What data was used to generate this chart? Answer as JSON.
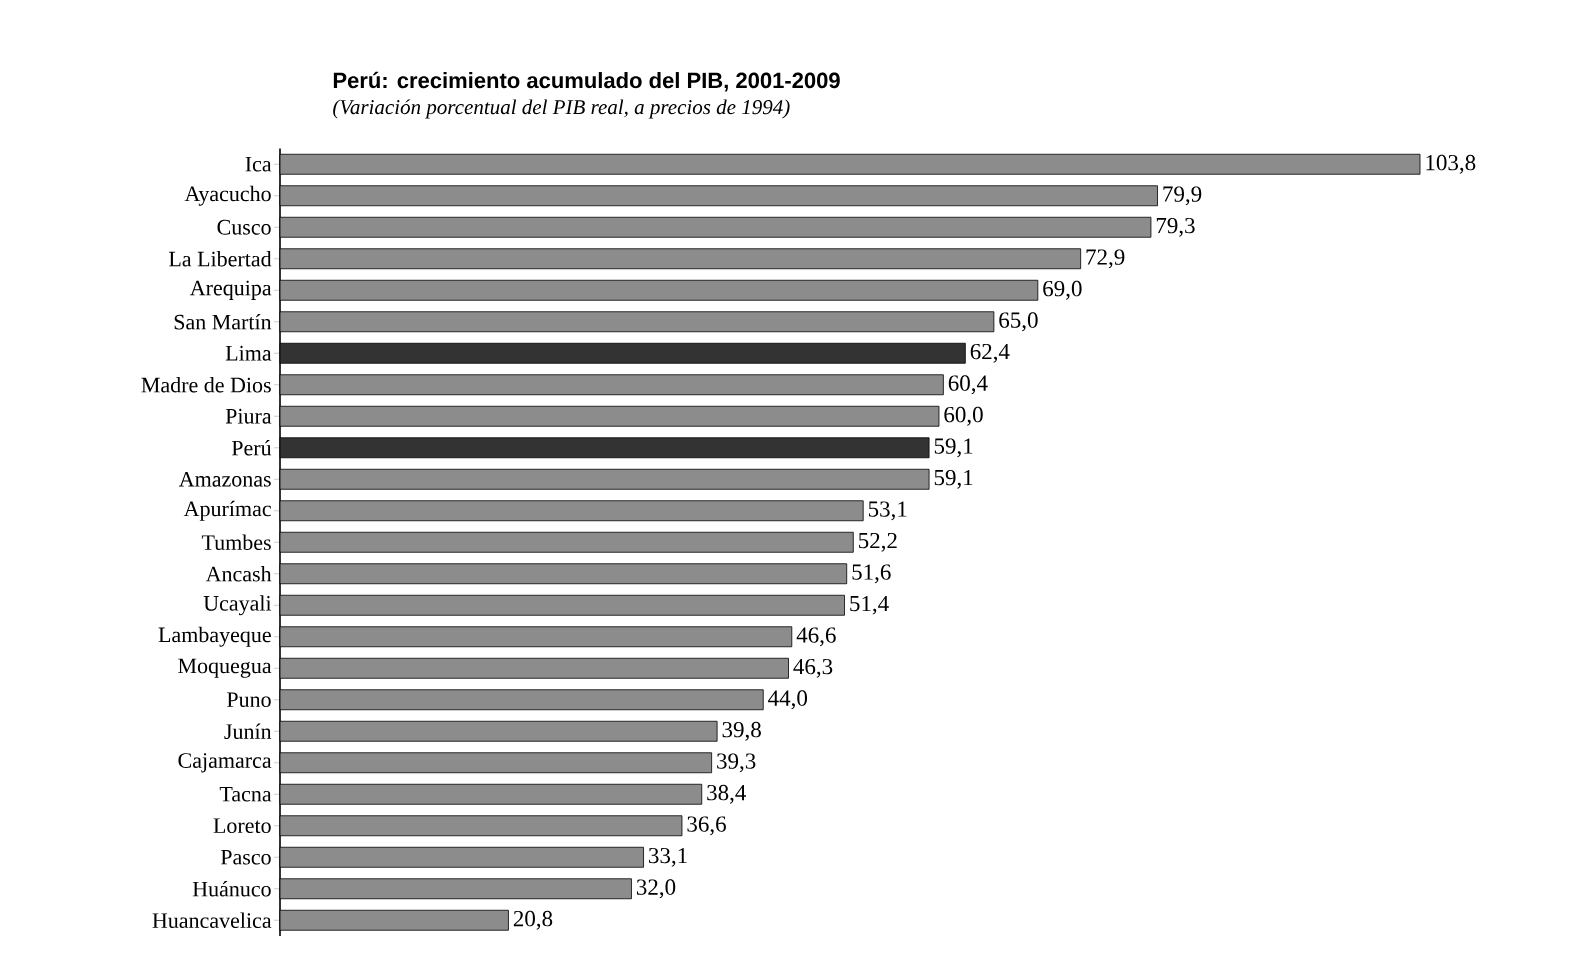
{
  "chart_data": {
    "type": "bar",
    "orientation": "horizontal",
    "title": "Perú: crecimiento acumulado del PIB, 2001-2009",
    "subtitle": "(Variación porcentual del PIB real, a precios de 1994)",
    "categories": [
      "Ica",
      "Ayacucho",
      "Cusco",
      "La Libertad",
      "Arequipa",
      "San Martín",
      "Lima",
      "Madre de Dios",
      "Piura",
      "Perú",
      "Amazonas",
      "Apurímac",
      "Tumbes",
      "Ancash",
      "Ucayali",
      "Lambayeque",
      "Moquegua",
      "Puno",
      "Junín",
      "Cajamarca",
      "Tacna",
      "Loreto",
      "Pasco",
      "Huánuco",
      "Huancavelica"
    ],
    "values": [
      103.8,
      79.9,
      79.3,
      72.9,
      69.0,
      65.0,
      62.4,
      60.4,
      60.0,
      59.1,
      59.1,
      53.1,
      52.2,
      51.6,
      51.4,
      46.6,
      46.3,
      44.0,
      39.8,
      39.3,
      38.4,
      36.6,
      33.1,
      32.0,
      20.8
    ],
    "value_labels": [
      "103,8",
      "79,9",
      "79,3",
      "72,9",
      "69,0",
      "65,0",
      "62,4",
      "60,4",
      "60,0",
      "59,1",
      "59,1",
      "53,1",
      "52,2",
      "51,6",
      "51,4",
      "46,6",
      "46,3",
      "44,0",
      "39,8",
      "39,3",
      "38,4",
      "36,6",
      "33,1",
      "32,0",
      "20,8"
    ],
    "colors": [
      "#8c8c8c",
      "#8c8c8c",
      "#8c8c8c",
      "#8c8c8c",
      "#8c8c8c",
      "#8c8c8c",
      "#333333",
      "#8c8c8c",
      "#8c8c8c",
      "#333333",
      "#8c8c8c",
      "#8c8c8c",
      "#8c8c8c",
      "#8c8c8c",
      "#8c8c8c",
      "#8c8c8c",
      "#8c8c8c",
      "#8c8c8c",
      "#8c8c8c",
      "#8c8c8c",
      "#8c8c8c",
      "#8c8c8c",
      "#8c8c8c",
      "#8c8c8c",
      "#8c8c8c"
    ]
  }
}
